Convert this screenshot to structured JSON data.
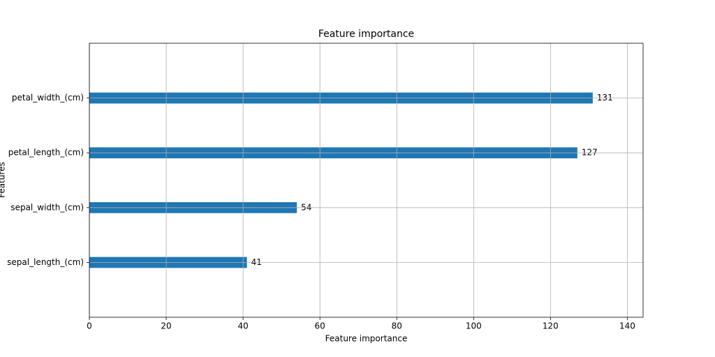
{
  "chart_data": {
    "type": "barh",
    "title": "Feature importance",
    "x_label": "Feature importance",
    "y_label": "Features",
    "categories": [
      "sepal_length_(cm)",
      "sepal_width_(cm)",
      "petal_length_(cm)",
      "petal_width_(cm)"
    ],
    "values": [
      41,
      54,
      127,
      131
    ],
    "color": "#1f77b4",
    "xlim": [
      0,
      144.1
    ],
    "xticks": [
      0,
      20,
      40,
      60,
      80,
      100,
      120,
      140
    ],
    "ylim": [
      -1,
      4
    ],
    "grid": true
  }
}
